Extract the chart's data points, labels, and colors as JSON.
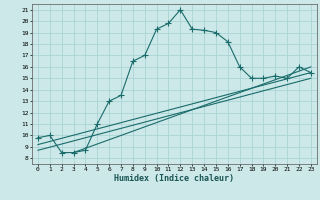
{
  "xlabel": "Humidex (Indice chaleur)",
  "bg_color": "#cce8e8",
  "grid_color": "#aad4d4",
  "line_color": "#1a6b6b",
  "xlim": [
    -0.5,
    23.5
  ],
  "ylim": [
    7.5,
    21.5
  ],
  "xticks": [
    0,
    1,
    2,
    3,
    4,
    5,
    6,
    7,
    8,
    9,
    10,
    11,
    12,
    13,
    14,
    15,
    16,
    17,
    18,
    19,
    20,
    21,
    22,
    23
  ],
  "yticks": [
    8,
    9,
    10,
    11,
    12,
    13,
    14,
    15,
    16,
    17,
    18,
    19,
    20,
    21
  ],
  "main_x": [
    0,
    1,
    2,
    3,
    4,
    5,
    6,
    7,
    8,
    9,
    10,
    11,
    12,
    13,
    14,
    15,
    16,
    17,
    18,
    19,
    20,
    21,
    22,
    23
  ],
  "main_y": [
    9.8,
    10.0,
    8.5,
    8.5,
    8.7,
    11.0,
    13.0,
    13.5,
    16.5,
    17.0,
    19.3,
    19.8,
    21.0,
    19.3,
    19.2,
    19.0,
    18.2,
    16.0,
    15.0,
    15.0,
    15.2,
    15.0,
    16.0,
    15.5
  ],
  "line2_x": [
    0,
    23
  ],
  "line2_y": [
    8.7,
    15.0
  ],
  "line3_x": [
    0,
    23
  ],
  "line3_y": [
    9.2,
    15.5
  ],
  "line4_x": [
    3,
    23
  ],
  "line4_y": [
    8.5,
    16.0
  ]
}
